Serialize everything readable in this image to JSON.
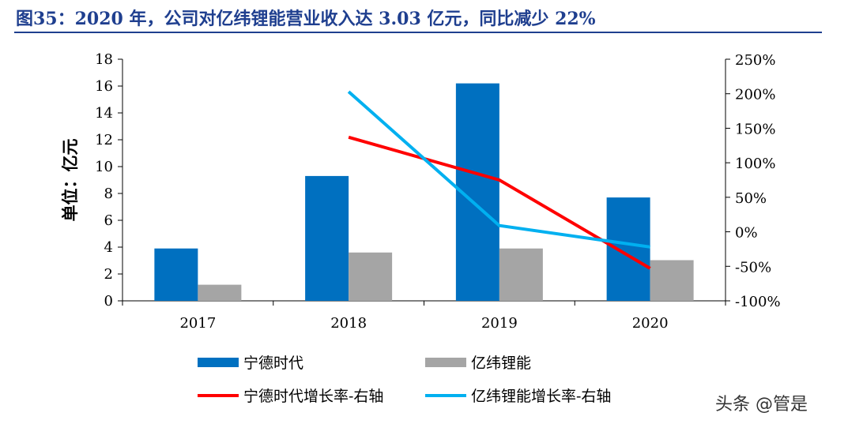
{
  "title": "图35：2020 年，公司对亿纬锂能营业收入达 3.03 亿元，同比减少 22%",
  "watermark": "头条 @管是",
  "chart_data": {
    "type": "bar+line",
    "categories": [
      "2017",
      "2018",
      "2019",
      "2020"
    ],
    "ylabel": "单位：亿元",
    "ylim": [
      0,
      18
    ],
    "yticks": [
      0,
      2,
      4,
      6,
      8,
      10,
      12,
      14,
      16,
      18
    ],
    "y2lim": [
      -100,
      250
    ],
    "y2ticks": [
      "-100%",
      "-50%",
      "0%",
      "50%",
      "100%",
      "150%",
      "200%",
      "250%"
    ],
    "grid": false,
    "legend_position": "bottom",
    "series": [
      {
        "name": "宁德时代",
        "type": "bar",
        "axis": "left",
        "color": "#0070c0",
        "values": [
          3.9,
          9.3,
          16.2,
          7.7
        ]
      },
      {
        "name": "亿纬锂能",
        "type": "bar",
        "axis": "left",
        "color": "#a5a5a5",
        "values": [
          1.2,
          3.6,
          3.9,
          3.03
        ]
      },
      {
        "name": "宁德时代增长率-右轴",
        "type": "line",
        "axis": "right",
        "unit": "%",
        "color": "#ff0000",
        "values": [
          null,
          137,
          75,
          -53
        ]
      },
      {
        "name": "亿纬锂能增长率-右轴",
        "type": "line",
        "axis": "right",
        "unit": "%",
        "color": "#00b0f0",
        "values": [
          null,
          203,
          9,
          -22
        ]
      }
    ]
  }
}
